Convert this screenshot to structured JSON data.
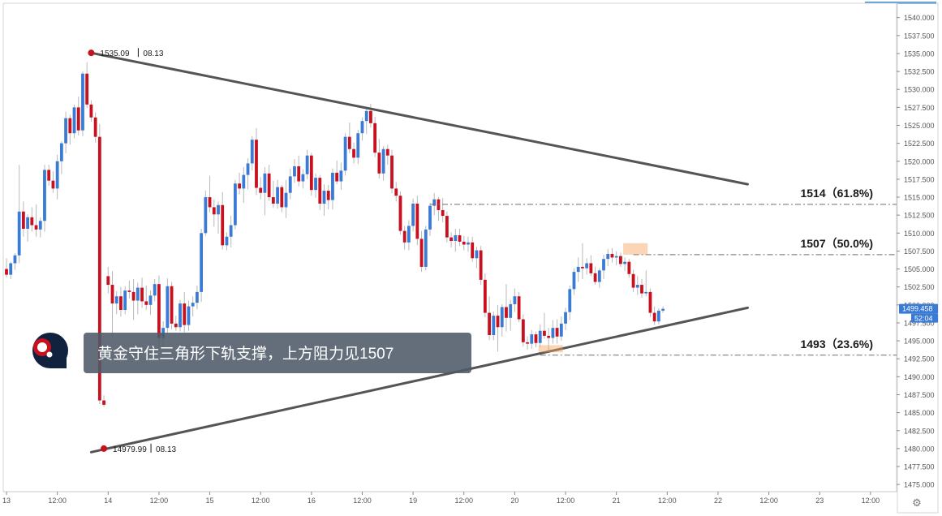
{
  "chart_data": {
    "type": "candlestick",
    "y_axis": {
      "ylim": [
        1474.0,
        1542.0
      ],
      "ticks": [
        "1475.000",
        "1477.500",
        "1480.000",
        "1482.500",
        "1485.000",
        "1487.500",
        "1490.000",
        "1492.500",
        "1495.000",
        "1497.500",
        "1500.000",
        "1502.500",
        "1505.000",
        "1507.500",
        "1510.000",
        "1512.500",
        "1515.000",
        "1517.500",
        "1520.000",
        "1522.500",
        "1525.000",
        "1527.500",
        "1530.000",
        "1532.500",
        "1535.000",
        "1537.500",
        "1540.000"
      ],
      "price_badge": "1499.458",
      "countdown_badge": "52:04"
    },
    "x_axis": {
      "tick_labels": [
        {
          "label": "13",
          "bar": 0
        },
        {
          "label": "12:00",
          "bar": 12
        },
        {
          "label": "14",
          "bar": 24
        },
        {
          "label": "12:00",
          "bar": 36
        },
        {
          "label": "15",
          "bar": 48
        },
        {
          "label": "12:00",
          "bar": 60
        },
        {
          "label": "16",
          "bar": 72
        },
        {
          "label": "12:00",
          "bar": 84
        },
        {
          "label": "19",
          "bar": 96
        },
        {
          "label": "12:00",
          "bar": 108
        },
        {
          "label": "20",
          "bar": 120
        },
        {
          "label": "12:00",
          "bar": 132
        },
        {
          "label": "21",
          "bar": 144
        },
        {
          "label": "12:00",
          "bar": 156
        },
        {
          "label": "22",
          "bar": 168
        },
        {
          "label": "12:00",
          "bar": 180
        },
        {
          "label": "23",
          "bar": 192
        },
        {
          "label": "12:00",
          "bar": 204
        }
      ]
    },
    "candles": [
      [
        1505.0,
        1506.5,
        1503.8,
        1504.2
      ],
      [
        1504.2,
        1506.0,
        1503.6,
        1505.8
      ],
      [
        1505.8,
        1507.2,
        1504.9,
        1506.9
      ],
      [
        1506.9,
        1519.5,
        1505.8,
        1513.0
      ],
      [
        1513.0,
        1514.4,
        1509.5,
        1510.6
      ],
      [
        1510.6,
        1512.6,
        1508.8,
        1512.2
      ],
      [
        1512.2,
        1513.6,
        1510.2,
        1511.1
      ],
      [
        1511.1,
        1514.0,
        1509.5,
        1510.5
      ],
      [
        1510.5,
        1512.2,
        1509.4,
        1511.7
      ],
      [
        1511.7,
        1519.5,
        1510.2,
        1518.8
      ],
      [
        1518.8,
        1519.5,
        1516.6,
        1517.3
      ],
      [
        1517.3,
        1518.6,
        1515.6,
        1516.2
      ],
      [
        1516.2,
        1520.9,
        1514.7,
        1520.0
      ],
      [
        1520.0,
        1522.8,
        1518.2,
        1522.5
      ],
      [
        1522.5,
        1526.9,
        1521.1,
        1526.0
      ],
      [
        1526.0,
        1526.5,
        1522.3,
        1523.9
      ],
      [
        1523.9,
        1527.9,
        1523.2,
        1527.5
      ],
      [
        1527.5,
        1529.0,
        1523.6,
        1524.3
      ],
      [
        1524.3,
        1532.5,
        1523.5,
        1532.2
      ],
      [
        1532.2,
        1533.8,
        1527.4,
        1527.9
      ],
      [
        1527.9,
        1528.5,
        1525.5,
        1526.1
      ],
      [
        1526.1,
        1526.8,
        1522.6,
        1523.4
      ],
      [
        1523.4,
        1525.2,
        1486.2,
        1486.7
      ],
      [
        1486.7,
        1487.4,
        1485.8,
        1486.1
      ],
      [
        1504.0,
        1505.3,
        1501.6,
        1502.8
      ],
      [
        1502.8,
        1504.7,
        1495.3,
        1500.2
      ],
      [
        1500.2,
        1501.9,
        1498.7,
        1501.2
      ],
      [
        1501.2,
        1502.5,
        1498.4,
        1499.3
      ],
      [
        1499.3,
        1502.6,
        1498.7,
        1502.0
      ],
      [
        1502.0,
        1503.4,
        1500.9,
        1501.8
      ],
      [
        1501.8,
        1503.6,
        1497.9,
        1500.6
      ],
      [
        1500.6,
        1503.1,
        1498.7,
        1502.4
      ],
      [
        1502.4,
        1503.8,
        1499.6,
        1500.5
      ],
      [
        1500.5,
        1502.7,
        1499.3,
        1500.0
      ],
      [
        1500.0,
        1502.0,
        1498.6,
        1501.3
      ],
      [
        1501.3,
        1503.6,
        1500.5,
        1502.9
      ],
      [
        1502.9,
        1504.1,
        1494.0,
        1495.4
      ],
      [
        1495.4,
        1497.7,
        1493.9,
        1496.8
      ],
      [
        1496.8,
        1503.7,
        1495.9,
        1502.6
      ],
      [
        1502.6,
        1503.2,
        1496.6,
        1497.4
      ],
      [
        1497.4,
        1498.5,
        1496.4,
        1496.9
      ],
      [
        1496.9,
        1500.7,
        1496.3,
        1500.2
      ],
      [
        1500.2,
        1501.8,
        1496.2,
        1497.2
      ],
      [
        1497.2,
        1500.6,
        1496.4,
        1499.8
      ],
      [
        1499.8,
        1501.2,
        1498.4,
        1500.3
      ],
      [
        1500.3,
        1502.7,
        1499.4,
        1501.8
      ],
      [
        1501.8,
        1510.6,
        1500.4,
        1510.0
      ],
      [
        1510.0,
        1515.9,
        1509.6,
        1515.0
      ],
      [
        1515.0,
        1518.0,
        1512.9,
        1513.6
      ],
      [
        1513.6,
        1514.7,
        1510.9,
        1512.6
      ],
      [
        1512.6,
        1514.4,
        1509.9,
        1513.9
      ],
      [
        1513.9,
        1515.7,
        1507.7,
        1508.3
      ],
      [
        1508.3,
        1510.1,
        1507.6,
        1509.5
      ],
      [
        1509.5,
        1512.4,
        1508.0,
        1511.1
      ],
      [
        1511.1,
        1517.4,
        1510.5,
        1516.9
      ],
      [
        1516.9,
        1518.4,
        1515.4,
        1516.2
      ],
      [
        1516.2,
        1519.2,
        1514.2,
        1518.1
      ],
      [
        1518.1,
        1520.4,
        1516.1,
        1519.7
      ],
      [
        1519.7,
        1523.5,
        1518.7,
        1523.0
      ],
      [
        1523.0,
        1524.6,
        1515.3,
        1516.3
      ],
      [
        1516.3,
        1517.8,
        1514.7,
        1515.6
      ],
      [
        1515.6,
        1519.2,
        1512.5,
        1518.3
      ],
      [
        1518.3,
        1519.5,
        1514.5,
        1515.0
      ],
      [
        1515.0,
        1517.3,
        1513.5,
        1514.1
      ],
      [
        1514.1,
        1517.4,
        1513.4,
        1516.4
      ],
      [
        1516.4,
        1516.7,
        1512.9,
        1513.6
      ],
      [
        1513.6,
        1517.4,
        1512.1,
        1515.6
      ],
      [
        1515.6,
        1519.0,
        1514.7,
        1517.9
      ],
      [
        1517.9,
        1520.3,
        1517.0,
        1519.3
      ],
      [
        1519.3,
        1520.8,
        1516.5,
        1517.2
      ],
      [
        1517.2,
        1518.9,
        1516.2,
        1518.2
      ],
      [
        1518.2,
        1521.6,
        1517.5,
        1520.8
      ],
      [
        1520.8,
        1521.2,
        1515.2,
        1516.0
      ],
      [
        1516.0,
        1518.3,
        1514.9,
        1517.7
      ],
      [
        1517.7,
        1518.1,
        1513.2,
        1514.1
      ],
      [
        1514.1,
        1516.8,
        1512.4,
        1515.9
      ],
      [
        1515.9,
        1516.7,
        1513.3,
        1514.6
      ],
      [
        1514.6,
        1519.0,
        1513.3,
        1518.4
      ],
      [
        1518.4,
        1520.1,
        1516.8,
        1517.2
      ],
      [
        1517.2,
        1519.8,
        1516.0,
        1518.7
      ],
      [
        1518.7,
        1523.9,
        1518.0,
        1523.4
      ],
      [
        1523.4,
        1525.4,
        1521.1,
        1521.7
      ],
      [
        1521.7,
        1522.6,
        1519.7,
        1520.5
      ],
      [
        1520.5,
        1524.4,
        1519.6,
        1523.9
      ],
      [
        1523.9,
        1526.1,
        1522.9,
        1525.6
      ],
      [
        1525.6,
        1527.6,
        1523.8,
        1527.0
      ],
      [
        1527.0,
        1528.0,
        1524.7,
        1525.3
      ],
      [
        1525.3,
        1526.2,
        1520.6,
        1521.2
      ],
      [
        1521.2,
        1523.1,
        1517.6,
        1518.3
      ],
      [
        1518.3,
        1522.1,
        1517.3,
        1521.7
      ],
      [
        1521.7,
        1522.3,
        1519.5,
        1520.8
      ],
      [
        1520.8,
        1521.6,
        1515.5,
        1516.2
      ],
      [
        1516.2,
        1517.1,
        1514.4,
        1515.2
      ],
      [
        1515.2,
        1515.8,
        1509.8,
        1510.3
      ],
      [
        1510.3,
        1511.0,
        1507.7,
        1508.7
      ],
      [
        1508.7,
        1511.8,
        1507.6,
        1511.0
      ],
      [
        1511.0,
        1514.8,
        1510.2,
        1514.1
      ],
      [
        1514.1,
        1515.2,
        1508.3,
        1509.2
      ],
      [
        1509.2,
        1510.3,
        1504.6,
        1505.3
      ],
      [
        1505.3,
        1511.0,
        1504.8,
        1510.5
      ],
      [
        1510.5,
        1514.2,
        1509.6,
        1513.8
      ],
      [
        1513.8,
        1515.6,
        1512.5,
        1514.7
      ],
      [
        1514.7,
        1515.0,
        1511.7,
        1513.2
      ],
      [
        1513.2,
        1514.9,
        1511.5,
        1512.4
      ],
      [
        1512.4,
        1513.0,
        1508.7,
        1509.4
      ],
      [
        1509.4,
        1510.1,
        1508.0,
        1508.9
      ],
      [
        1508.9,
        1510.6,
        1507.4,
        1509.7
      ],
      [
        1509.7,
        1510.6,
        1508.2,
        1508.8
      ],
      [
        1508.8,
        1509.6,
        1507.6,
        1508.4
      ],
      [
        1508.4,
        1509.5,
        1507.4,
        1508.7
      ],
      [
        1508.7,
        1509.5,
        1506.0,
        1506.5
      ],
      [
        1506.5,
        1508.1,
        1505.1,
        1507.6
      ],
      [
        1507.6,
        1508.2,
        1502.8,
        1503.5
      ],
      [
        1503.5,
        1504.4,
        1498.3,
        1498.9
      ],
      [
        1498.9,
        1501.2,
        1495.1,
        1495.8
      ],
      [
        1495.8,
        1499.1,
        1495.1,
        1498.5
      ],
      [
        1498.5,
        1500.0,
        1493.5,
        1496.9
      ],
      [
        1496.9,
        1500.1,
        1495.6,
        1499.7
      ],
      [
        1499.7,
        1502.9,
        1496.3,
        1498.2
      ],
      [
        1498.2,
        1500.7,
        1496.4,
        1500.1
      ],
      [
        1500.1,
        1502.3,
        1499.0,
        1501.2
      ],
      [
        1501.2,
        1501.8,
        1497.6,
        1498.0
      ],
      [
        1498.0,
        1498.7,
        1494.2,
        1494.8
      ],
      [
        1494.8,
        1495.6,
        1493.8,
        1494.6
      ],
      [
        1494.6,
        1496.5,
        1493.9,
        1495.9
      ],
      [
        1495.9,
        1496.3,
        1494.1,
        1494.7
      ],
      [
        1494.7,
        1497.3,
        1494.1,
        1496.4
      ],
      [
        1496.4,
        1498.9,
        1495.3,
        1495.7
      ],
      [
        1495.7,
        1496.8,
        1493.3,
        1495.4
      ],
      [
        1495.4,
        1497.9,
        1494.6,
        1496.8
      ],
      [
        1496.8,
        1498.0,
        1494.6,
        1495.6
      ],
      [
        1495.6,
        1498.4,
        1495.0,
        1497.4
      ],
      [
        1497.4,
        1499.6,
        1496.5,
        1499.0
      ],
      [
        1499.0,
        1502.7,
        1497.9,
        1502.2
      ],
      [
        1502.2,
        1505.1,
        1501.4,
        1504.6
      ],
      [
        1504.6,
        1506.6,
        1503.2,
        1505.3
      ],
      [
        1505.3,
        1508.6,
        1503.6,
        1505.1
      ],
      [
        1505.1,
        1506.5,
        1504.2,
        1505.8
      ],
      [
        1505.8,
        1506.9,
        1504.0,
        1504.4
      ],
      [
        1504.4,
        1505.3,
        1502.8,
        1503.2
      ],
      [
        1503.2,
        1505.1,
        1502.4,
        1504.8
      ],
      [
        1504.8,
        1507.0,
        1503.6,
        1506.4
      ],
      [
        1506.4,
        1507.8,
        1505.4,
        1507.1
      ],
      [
        1507.1,
        1507.9,
        1505.9,
        1506.6
      ],
      [
        1506.6,
        1507.5,
        1505.5,
        1506.8
      ],
      [
        1506.8,
        1507.3,
        1505.3,
        1505.7
      ],
      [
        1505.7,
        1506.6,
        1504.7,
        1506.0
      ],
      [
        1506.0,
        1506.4,
        1503.8,
        1504.3
      ],
      [
        1504.3,
        1504.9,
        1501.8,
        1502.4
      ],
      [
        1502.4,
        1504.0,
        1501.4,
        1502.8
      ],
      [
        1502.8,
        1503.6,
        1501.0,
        1501.6
      ],
      [
        1501.6,
        1504.8,
        1501.2,
        1501.8
      ],
      [
        1501.8,
        1502.3,
        1498.3,
        1498.9
      ],
      [
        1498.9,
        1499.8,
        1497.2,
        1497.7
      ],
      [
        1497.7,
        1499.5,
        1497.3,
        1499.2
      ],
      [
        1499.2,
        1499.8,
        1498.9,
        1499.458
      ]
    ],
    "annotations": {
      "lines": [
        {
          "from": {
            "bar": 20,
            "price": 1535.09
          },
          "to": {
            "bar": 175,
            "price": 1516.8
          }
        },
        {
          "from": {
            "bar": 20,
            "price": 1479.5
          },
          "to": {
            "bar": 175,
            "price": 1499.6
          }
        }
      ],
      "levels": [
        {
          "label": "1514（61.8%)",
          "price": 1514.0,
          "from_bar": 100
        },
        {
          "label": "1507（50.0%)",
          "price": 1507.0,
          "from_bar": 148
        },
        {
          "label": "1493（23.6%)",
          "price": 1493.0,
          "from_bar": 126
        }
      ],
      "highlights": [
        {
          "bar_from": 126,
          "bar_to": 131,
          "price_from": 1493.4,
          "price_to": 1494.4
        },
        {
          "bar_from": 146,
          "bar_to": 151,
          "price_from": 1507.0,
          "price_to": 1508.6
        }
      ],
      "points": [
        {
          "bar": 20,
          "price": 1535.09,
          "value": "1535.09",
          "date": "08.13"
        },
        {
          "bar": 23,
          "price": 1480.0,
          "value": "14979.99",
          "date": "08.13"
        }
      ],
      "banner": "黄金守住三角形下轨支撑，上方阻力见1507"
    }
  }
}
